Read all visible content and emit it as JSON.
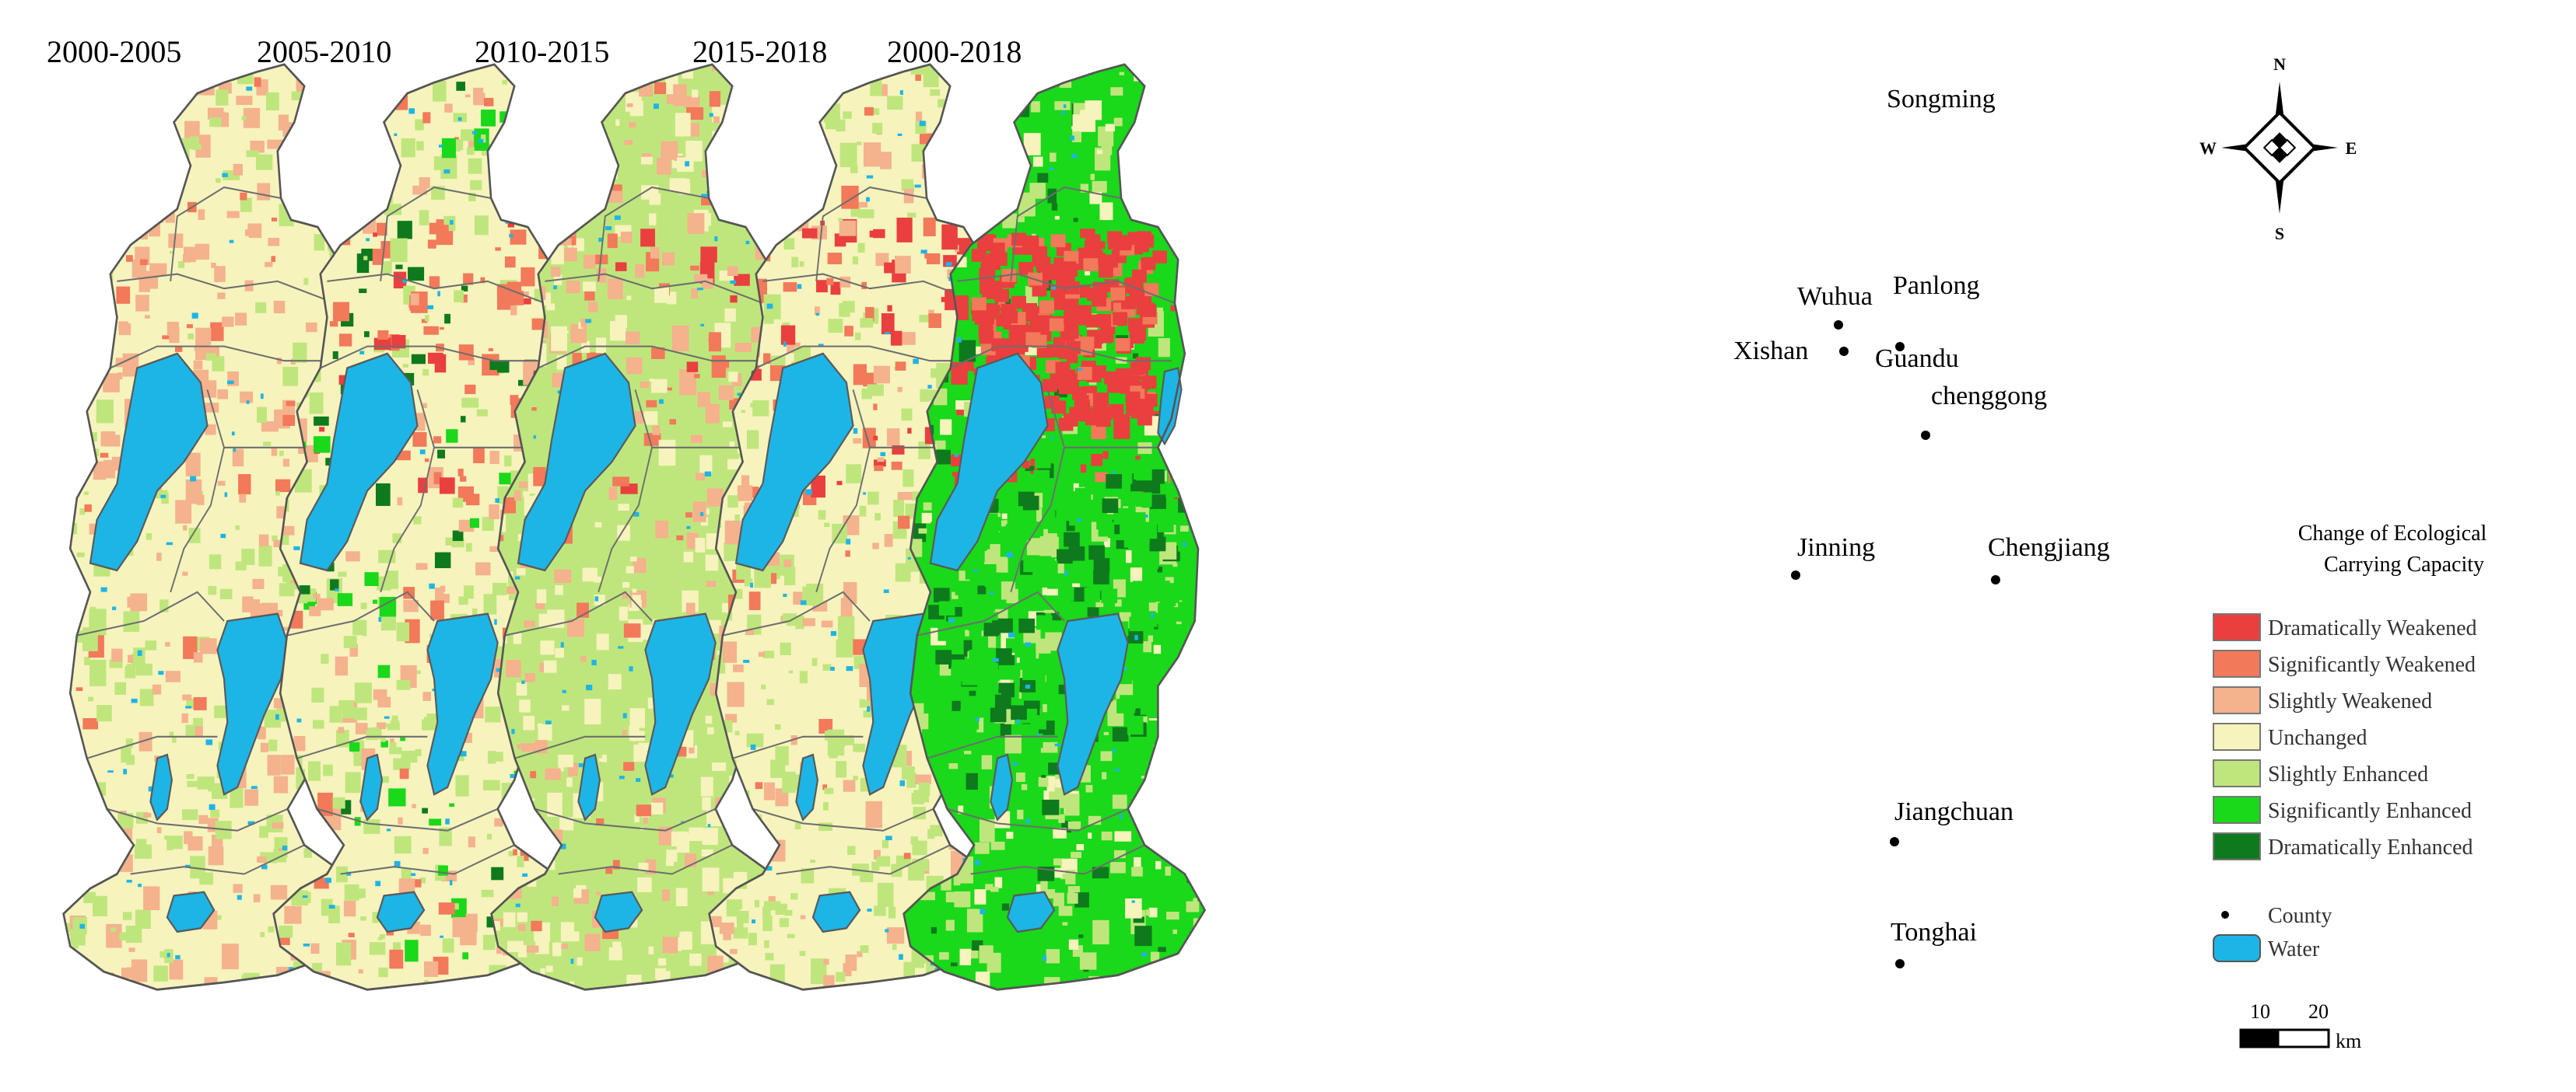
{
  "panels": [
    {
      "title": "2000-2005"
    },
    {
      "title": "2005-2010"
    },
    {
      "title": "2010-2015"
    },
    {
      "title": "2015-2018"
    },
    {
      "title": "2000-2018"
    }
  ],
  "places": [
    {
      "name": "Songming",
      "has_dot": false
    },
    {
      "name": "Panlong",
      "has_dot": false
    },
    {
      "name": "Wuhua",
      "has_dot": true
    },
    {
      "name": "Xishan",
      "has_dot": true
    },
    {
      "name": "Guandu",
      "has_dot": true
    },
    {
      "name": "chenggong",
      "has_dot": true
    },
    {
      "name": "Jinning",
      "has_dot": true
    },
    {
      "name": "Chengjiang",
      "has_dot": true
    },
    {
      "name": "Jiangchuan",
      "has_dot": true
    },
    {
      "name": "Tonghai",
      "has_dot": true
    }
  ],
  "compass": {
    "n": "N",
    "s": "S",
    "e": "E",
    "w": "W"
  },
  "legend": {
    "title_line1": "Change of Ecological",
    "title_line2": "Carrying Capacity",
    "classes": [
      {
        "label": "Dramatically Weakened",
        "color": "#ea3f3f"
      },
      {
        "label": "Significantly Weakened",
        "color": "#f2795a"
      },
      {
        "label": "Slightly Weakened",
        "color": "#f4b28d"
      },
      {
        "label": "Unchanged",
        "color": "#f6f3bd"
      },
      {
        "label": "Slightly Enhanced",
        "color": "#bfe67c"
      },
      {
        "label": "Significantly Enhanced",
        "color": "#1ad81a"
      },
      {
        "label": "Dramatically Enhanced",
        "color": "#0e7a1d"
      }
    ],
    "county_label": "County",
    "water_label": "Water",
    "water_color": "#1db5e6"
  },
  "scale_bar": {
    "tick1": "10",
    "tick2": "20",
    "unit": "km"
  }
}
